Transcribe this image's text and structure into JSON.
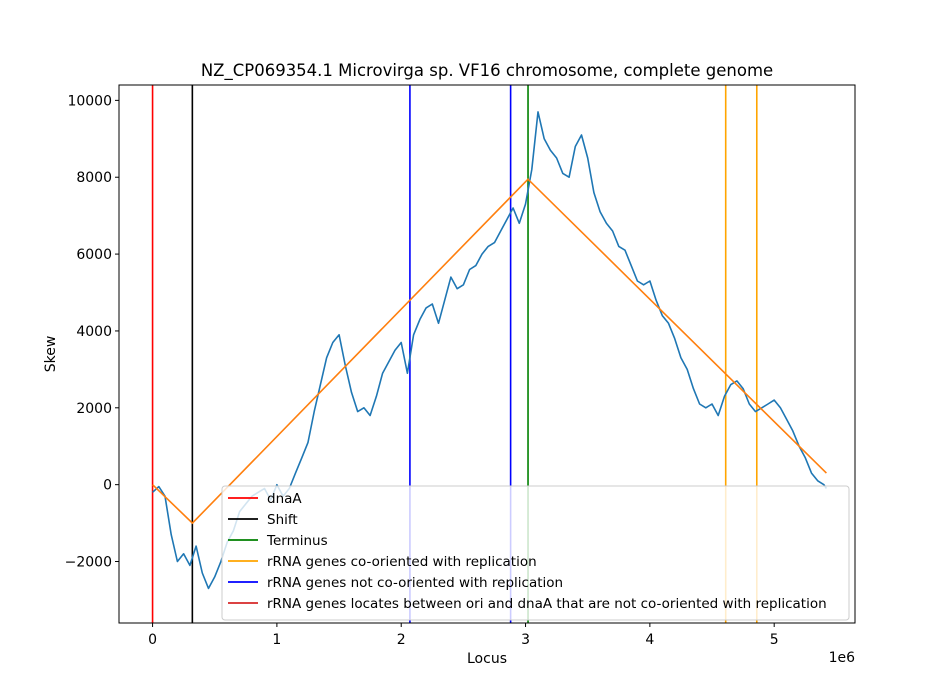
{
  "chart_data": {
    "type": "line",
    "title": "NZ_CP069354.1 Microvirga sp. VF16 chromosome, complete genome",
    "xlabel": "Locus",
    "ylabel": "Skew",
    "x_offset_text": "1e6",
    "x_scale": 1000000,
    "xlim": [
      -0.27,
      5.65
    ],
    "ylim": [
      -3600,
      10400
    ],
    "x_ticks": [
      0,
      1,
      2,
      3,
      4,
      5
    ],
    "x_tick_labels": [
      "0",
      "1",
      "2",
      "3",
      "4",
      "5"
    ],
    "y_ticks": [
      -2000,
      0,
      2000,
      4000,
      6000,
      8000,
      10000
    ],
    "y_tick_labels": [
      "−2000",
      "0",
      "2000",
      "4000",
      "6000",
      "8000",
      "10000"
    ],
    "grid": false,
    "legend_placement": "lower-right",
    "colors": {
      "skew": "#1f77b4",
      "fit": "#ff7f0e",
      "dnaA": "#ff0000",
      "shift": "#000000",
      "terminus": "#008000",
      "co_oriented": "#ffa500",
      "not_co_oriented": "#0000ff",
      "between_ori_dnaA": "#d62728"
    },
    "skew_series": {
      "x": [
        0.0,
        0.05,
        0.1,
        0.15,
        0.2,
        0.25,
        0.3,
        0.35,
        0.4,
        0.45,
        0.5,
        0.55,
        0.6,
        0.65,
        0.7,
        0.75,
        0.8,
        0.85,
        0.9,
        0.95,
        1.0,
        1.05,
        1.1,
        1.15,
        1.2,
        1.25,
        1.3,
        1.35,
        1.4,
        1.45,
        1.5,
        1.55,
        1.6,
        1.65,
        1.7,
        1.75,
        1.8,
        1.85,
        1.9,
        1.95,
        2.0,
        2.05,
        2.1,
        2.15,
        2.2,
        2.25,
        2.3,
        2.35,
        2.4,
        2.45,
        2.5,
        2.55,
        2.6,
        2.65,
        2.7,
        2.75,
        2.8,
        2.85,
        2.9,
        2.95,
        3.0,
        3.05,
        3.1,
        3.15,
        3.2,
        3.25,
        3.3,
        3.35,
        3.4,
        3.45,
        3.5,
        3.55,
        3.6,
        3.65,
        3.7,
        3.75,
        3.8,
        3.85,
        3.9,
        3.95,
        4.0,
        4.05,
        4.1,
        4.15,
        4.2,
        4.25,
        4.3,
        4.35,
        4.4,
        4.45,
        4.5,
        4.55,
        4.6,
        4.65,
        4.7,
        4.75,
        4.8,
        4.85,
        4.9,
        4.95,
        5.0,
        5.05,
        5.1,
        5.15,
        5.2,
        5.25,
        5.3,
        5.35,
        5.4,
        5.42
      ],
      "y": [
        -200,
        -50,
        -300,
        -1300,
        -2000,
        -1800,
        -2100,
        -1600,
        -2300,
        -2700,
        -2400,
        -2000,
        -1500,
        -1200,
        -700,
        -500,
        -300,
        -200,
        -100,
        -400,
        0,
        -300,
        -100,
        300,
        700,
        1100,
        1900,
        2600,
        3300,
        3700,
        3900,
        3100,
        2400,
        1900,
        2000,
        1800,
        2300,
        2900,
        3200,
        3500,
        3700,
        2900,
        3900,
        4300,
        4600,
        4700,
        4200,
        4800,
        5400,
        5100,
        5200,
        5600,
        5700,
        6000,
        6200,
        6300,
        6600,
        6900,
        7200,
        6800,
        7300,
        8200,
        9700,
        9000,
        8700,
        8500,
        8100,
        8000,
        8800,
        9100,
        8500,
        7600,
        7100,
        6800,
        6600,
        6200,
        6100,
        5700,
        5300,
        5200,
        5300,
        4800,
        4400,
        4200,
        3800,
        3300,
        3000,
        2500,
        2100,
        2000,
        2100,
        1800,
        2300,
        2600,
        2700,
        2500,
        2100,
        1900,
        2000,
        2100,
        2200,
        2000,
        1700,
        1400,
        1000,
        700,
        300,
        100,
        0,
        -100
      ]
    },
    "fit_series": {
      "x": [
        0,
        0.32,
        3.02,
        5.42
      ],
      "y": [
        0,
        -1000,
        7950,
        300
      ]
    },
    "vertical_lines": [
      {
        "x": 0,
        "group": "dnaA"
      },
      {
        "x": 0.32,
        "group": "shift"
      },
      {
        "x": 2.07,
        "group": "not_co_oriented"
      },
      {
        "x": 2.88,
        "group": "not_co_oriented"
      },
      {
        "x": 3.02,
        "group": "terminus"
      },
      {
        "x": 4.61,
        "group": "co_oriented"
      },
      {
        "x": 4.86,
        "group": "co_oriented"
      }
    ],
    "legend": [
      {
        "label": "dnaA",
        "color": "#ff0000"
      },
      {
        "label": "Shift",
        "color": "#000000"
      },
      {
        "label": "Terminus",
        "color": "#008000"
      },
      {
        "label": "rRNA genes co-oriented with replication",
        "color": "#ffa500"
      },
      {
        "label": "rRNA genes not co-oriented with replication",
        "color": "#0000ff"
      },
      {
        "label": "rRNA genes locates between ori and dnaA that are not co-oriented with replication",
        "color": "#d62728"
      }
    ]
  }
}
